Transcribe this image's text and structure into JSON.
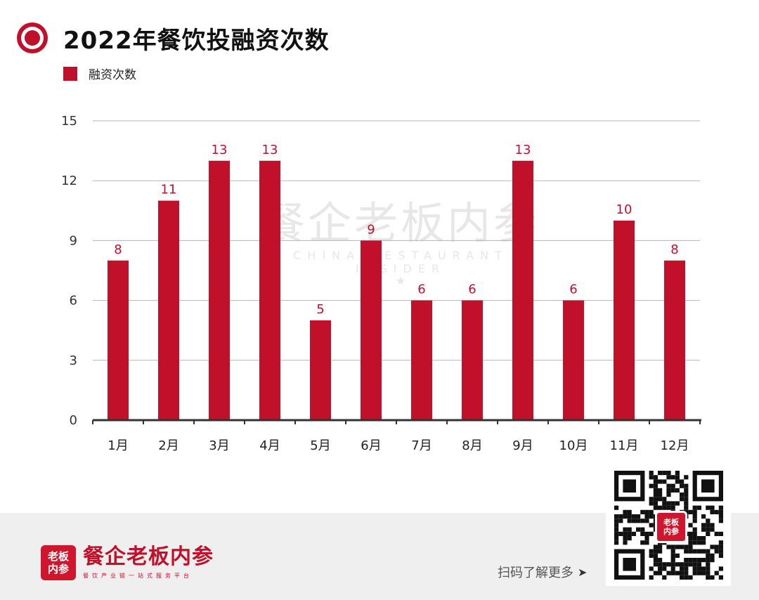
{
  "header": {
    "title": "2022年餐饮投融资次数"
  },
  "watermark": {
    "main": "餐企老板内参",
    "sub": "CHINA RESTAURANT INSIDER",
    "star": "★"
  },
  "chart_data": {
    "type": "bar",
    "title": "2022年餐饮投融资次数",
    "categories": [
      "1月",
      "2月",
      "3月",
      "4月",
      "5月",
      "6月",
      "7月",
      "8月",
      "9月",
      "10月",
      "11月",
      "12月"
    ],
    "series": [
      {
        "name": "融资次数",
        "values": [
          8,
          11,
          13,
          13,
          5,
          9,
          6,
          6,
          13,
          6,
          10,
          8
        ]
      }
    ],
    "yticks": [
      0,
      3,
      6,
      9,
      12,
      15
    ],
    "ylim": [
      0,
      15
    ],
    "xlabel": "",
    "ylabel": "",
    "grid": true,
    "legend_position": "top-left",
    "bar_color": "#c0102a",
    "label_color": "#c0102a"
  },
  "footer": {
    "logo_line1": "老板",
    "logo_line2": "内参",
    "brand_name": "餐企老板内参",
    "slogan": "餐饮产业链一站式服务平台",
    "scan_text": "扫码了解更多",
    "arrow": "➤",
    "qr_logo_line1": "老板",
    "qr_logo_line2": "内参"
  }
}
